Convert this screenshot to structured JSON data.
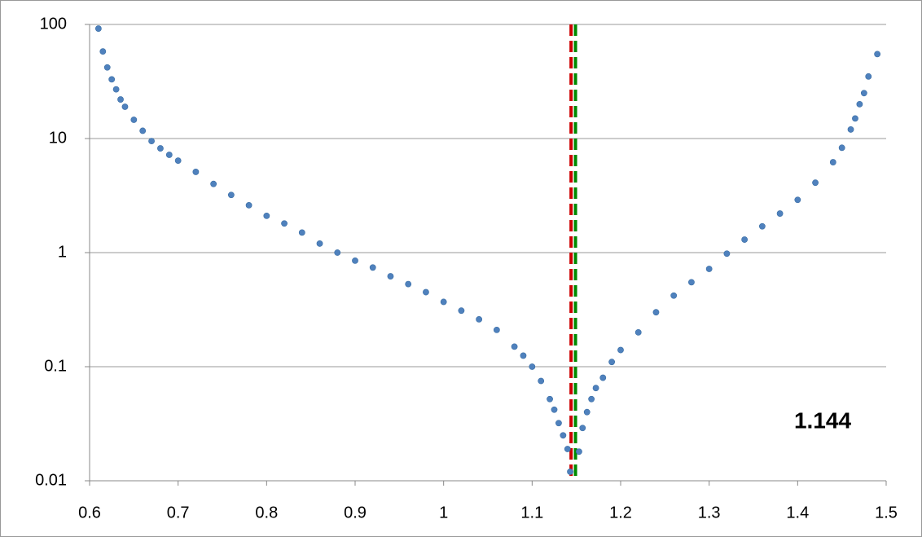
{
  "chart_data": {
    "type": "scatter",
    "yscale": "log",
    "grid": true,
    "x": [
      0.61,
      0.615,
      0.62,
      0.625,
      0.63,
      0.635,
      0.64,
      0.65,
      0.66,
      0.67,
      0.68,
      0.69,
      0.7,
      0.72,
      0.74,
      0.76,
      0.78,
      0.8,
      0.82,
      0.84,
      0.86,
      0.88,
      0.9,
      0.92,
      0.94,
      0.96,
      0.98,
      1.0,
      1.02,
      1.04,
      1.06,
      1.08,
      1.09,
      1.1,
      1.11,
      1.12,
      1.125,
      1.13,
      1.135,
      1.14,
      1.143,
      1.153,
      1.157,
      1.162,
      1.167,
      1.172,
      1.18,
      1.19,
      1.2,
      1.22,
      1.24,
      1.26,
      1.28,
      1.3,
      1.32,
      1.34,
      1.36,
      1.38,
      1.4,
      1.42,
      1.44,
      1.45,
      1.46,
      1.465,
      1.47,
      1.475,
      1.48,
      1.49
    ],
    "series": [
      {
        "color": "#4f81bd",
        "values": [
          92,
          58,
          42,
          33,
          27,
          22,
          19,
          14.6,
          11.7,
          9.5,
          8.2,
          7.2,
          6.4,
          5.1,
          4.0,
          3.2,
          2.6,
          2.1,
          1.8,
          1.5,
          1.2,
          1.0,
          0.85,
          0.74,
          0.62,
          0.53,
          0.45,
          0.37,
          0.31,
          0.26,
          0.21,
          0.15,
          0.125,
          0.1,
          0.075,
          0.052,
          0.042,
          0.032,
          0.025,
          0.019,
          0.012,
          0.018,
          0.029,
          0.04,
          0.052,
          0.065,
          0.08,
          0.11,
          0.14,
          0.2,
          0.3,
          0.42,
          0.55,
          0.72,
          0.98,
          1.3,
          1.7,
          2.2,
          2.9,
          4.1,
          6.2,
          8.3,
          12,
          15,
          20,
          25,
          35,
          55
        ]
      }
    ],
    "vlines": [
      {
        "x": 1.144,
        "color": "#cc0000"
      },
      {
        "x": 1.149,
        "color": "#008a00"
      }
    ],
    "annotation": "1.144",
    "xlim": [
      0.6,
      1.5
    ],
    "xticks": [
      0.6,
      0.7,
      0.8,
      0.9,
      1,
      1.1,
      1.2,
      1.3,
      1.4,
      1.5
    ],
    "ylim": [
      0.01,
      100
    ],
    "yticks": [
      0.01,
      0.1,
      1,
      10,
      100
    ]
  }
}
